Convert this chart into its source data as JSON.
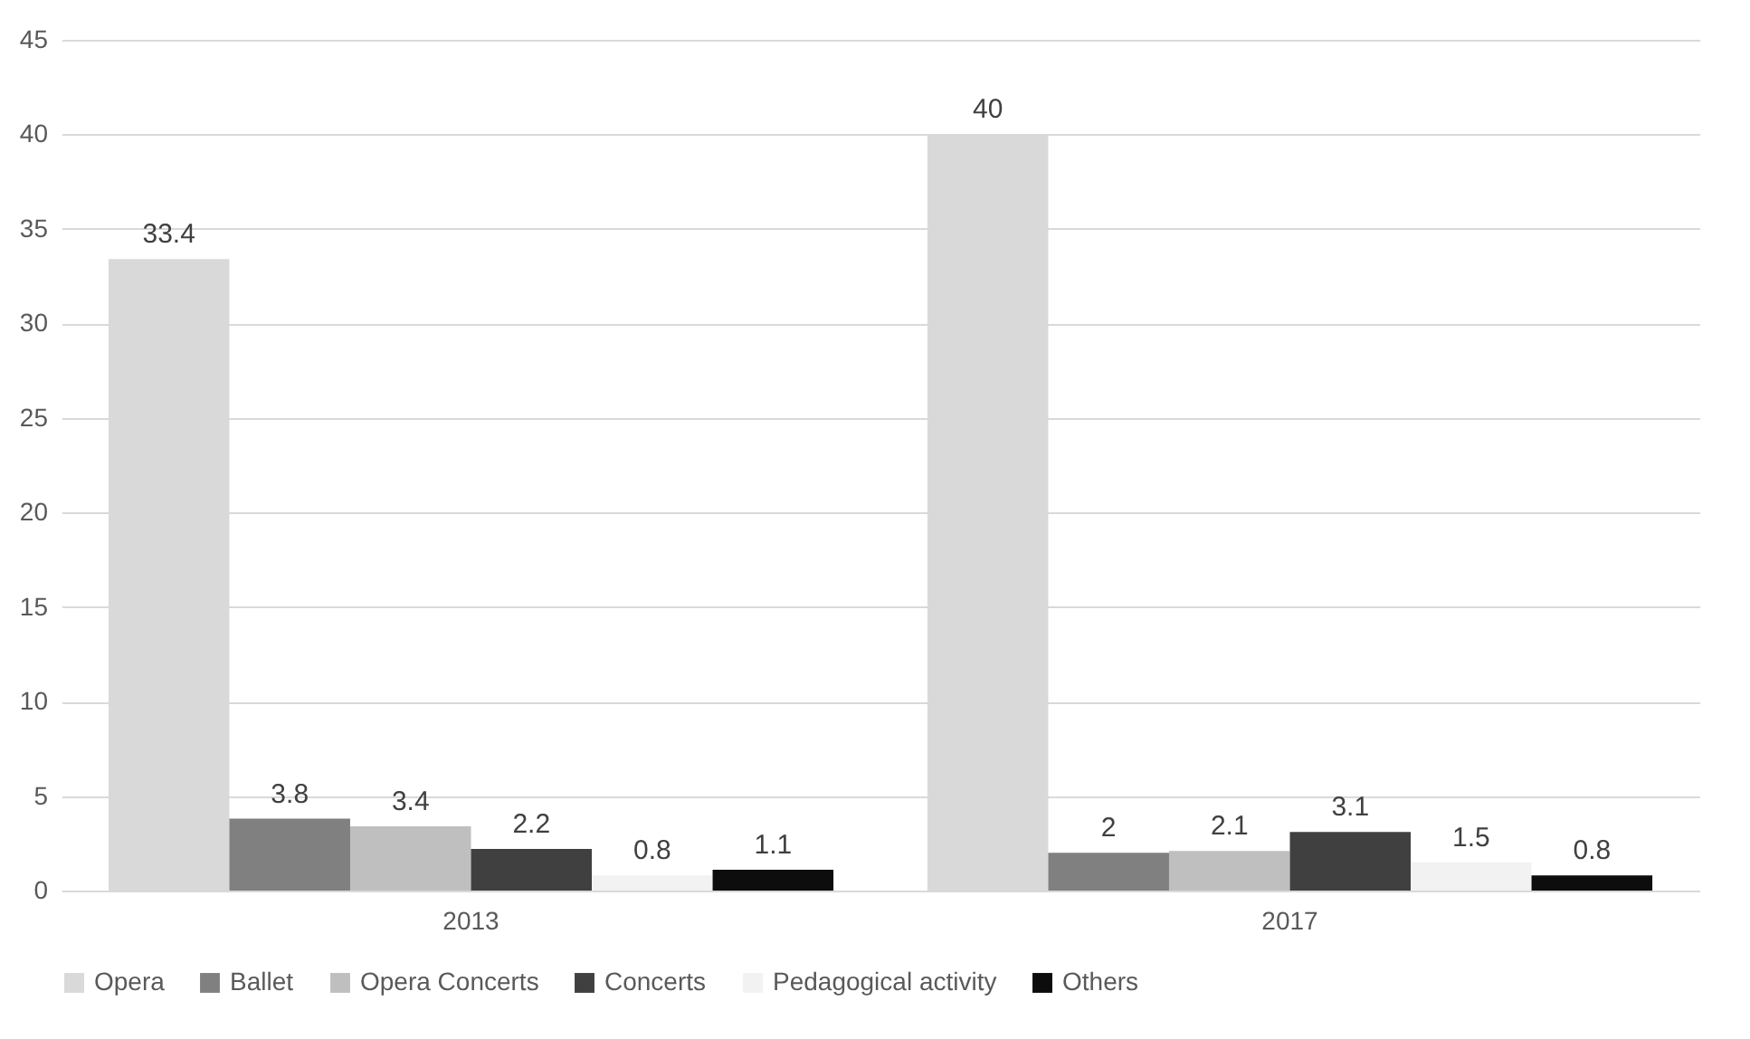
{
  "chart_data": {
    "type": "bar",
    "categories": [
      "2013",
      "2017"
    ],
    "series": [
      {
        "name": "Opera",
        "color": "#d9d9d9",
        "values": [
          33.4,
          40
        ]
      },
      {
        "name": "Ballet",
        "color": "#808080",
        "values": [
          3.8,
          2
        ]
      },
      {
        "name": "Opera Concerts",
        "color": "#bfbfbf",
        "values": [
          3.4,
          2.1
        ]
      },
      {
        "name": "Concerts",
        "color": "#404040",
        "values": [
          2.2,
          3.1
        ]
      },
      {
        "name": "Pedagogical activity",
        "color": "#f2f2f2",
        "values": [
          0.8,
          1.5
        ]
      },
      {
        "name": "Others",
        "color": "#0d0d0d",
        "values": [
          1.1,
          0.8
        ]
      }
    ],
    "ylim": [
      0,
      45
    ],
    "yticks": [
      0,
      5,
      10,
      15,
      20,
      25,
      30,
      35,
      40,
      45
    ],
    "grid": "y",
    "legend": "bottom",
    "data_labels": true
  }
}
